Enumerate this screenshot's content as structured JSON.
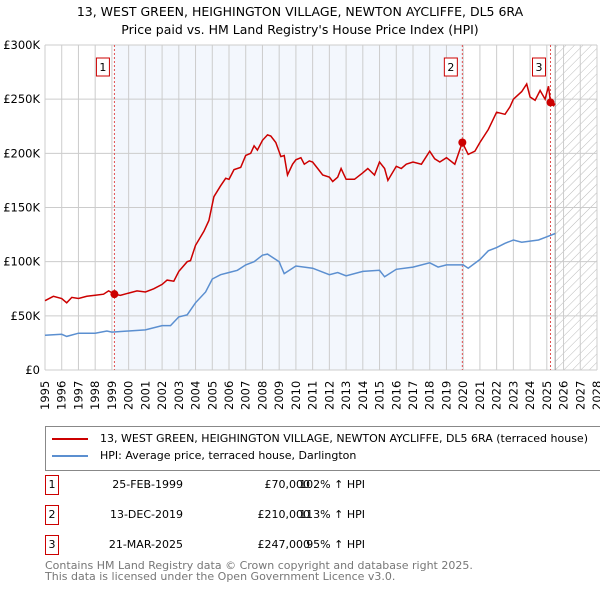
{
  "title": "13, WEST GREEN, HEIGHINGTON VILLAGE, NEWTON AYCLIFFE, DL5 6RA",
  "subtitle": "Price paid vs. HM Land Registry's House Price Index (HPI)",
  "chart_data": {
    "type": "line",
    "xlim": [
      1995,
      2028
    ],
    "ylim": [
      0,
      300000
    ],
    "yticks": [
      0,
      50000,
      100000,
      150000,
      200000,
      250000,
      300000
    ],
    "ytick_labels": [
      "£0",
      "£50K",
      "£100K",
      "£150K",
      "£200K",
      "£250K",
      "£300K"
    ],
    "xticks": [
      "1995",
      "1996",
      "1997",
      "1998",
      "1999",
      "2000",
      "2001",
      "2002",
      "2003",
      "2004",
      "2005",
      "2006",
      "2007",
      "2008",
      "2009",
      "2010",
      "2011",
      "2012",
      "2013",
      "2014",
      "2015",
      "2016",
      "2017",
      "2018",
      "2019",
      "2020",
      "2021",
      "2022",
      "2023",
      "2024",
      "2025",
      "2026",
      "2027",
      "2028"
    ],
    "grid": true,
    "shaded_period": [
      1999.15,
      2019.95
    ],
    "forecast_hatch_from": 2025.5,
    "series": [
      {
        "name": "13, WEST GREEN, HEIGHINGTON VILLAGE, NEWTON AYCLIFFE, DL5 6RA (terraced house)",
        "color": "#cc0000",
        "x": [
          1995,
          1995.5,
          1996,
          1996.3,
          1996.6,
          1997,
          1997.5,
          1998,
          1998.5,
          1998.8,
          1999.15,
          1999.5,
          2000,
          2000.5,
          2001,
          2001.5,
          2002,
          2002.3,
          2002.7,
          2003,
          2003.5,
          2003.7,
          2004,
          2004.5,
          2004.8,
          2005.1,
          2005.5,
          2005.8,
          2006,
          2006.3,
          2006.7,
          2007,
          2007.3,
          2007.5,
          2007.7,
          2008,
          2008.3,
          2008.5,
          2008.8,
          2009.1,
          2009.3,
          2009.5,
          2009.8,
          2010,
          2010.3,
          2010.5,
          2010.8,
          2011,
          2011.3,
          2011.6,
          2012,
          2012.2,
          2012.5,
          2012.7,
          2013,
          2013.5,
          2014,
          2014.3,
          2014.7,
          2015,
          2015.3,
          2015.5,
          2016,
          2016.3,
          2016.6,
          2017,
          2017.5,
          2018,
          2018.3,
          2018.6,
          2019,
          2019.5,
          2019.95,
          2020.3,
          2020.7,
          2021,
          2021.5,
          2022,
          2022.5,
          2022.8,
          2023,
          2023.5,
          2023.8,
          2024,
          2024.3,
          2024.6,
          2024.9,
          2025,
          2025.1,
          2025.22,
          2025.4,
          2025.5
        ],
        "y": [
          64000,
          68000,
          66000,
          62000,
          67000,
          66000,
          68000,
          69000,
          70000,
          73000,
          70000,
          69000,
          71000,
          73000,
          72000,
          75000,
          79000,
          83000,
          82000,
          91000,
          100000,
          101000,
          115000,
          128000,
          138000,
          160000,
          170000,
          177000,
          176000,
          185000,
          187000,
          198000,
          200000,
          207000,
          203000,
          212000,
          217000,
          216000,
          210000,
          197000,
          198000,
          180000,
          190000,
          194000,
          196000,
          190000,
          193000,
          192000,
          186000,
          180000,
          178000,
          174000,
          178000,
          186000,
          176000,
          176000,
          182000,
          186000,
          180000,
          192000,
          186000,
          175000,
          188000,
          186000,
          190000,
          192000,
          190000,
          202000,
          195000,
          192000,
          196000,
          190000,
          210000,
          199000,
          202000,
          210000,
          222000,
          238000,
          236000,
          243000,
          250000,
          257000,
          264000,
          252000,
          249000,
          258000,
          250000,
          256000,
          262000,
          247000,
          244000,
          246000
        ]
      },
      {
        "name": "HPI: Average price, terraced house, Darlington",
        "color": "#5b8fd0",
        "x": [
          1995,
          1996,
          1996.3,
          1997,
          1998,
          1998.7,
          1999,
          2000,
          2001,
          2002,
          2002.5,
          2003,
          2003.5,
          2004,
          2004.6,
          2005,
          2005.5,
          2006,
          2006.5,
          2007,
          2007.5,
          2008,
          2008.3,
          2009,
          2009.1,
          2009.3,
          2010,
          2011,
          2012,
          2012.5,
          2013,
          2014,
          2015,
          2015.3,
          2016,
          2017,
          2018,
          2018.5,
          2019,
          2020,
          2020.3,
          2021,
          2021.5,
          2022,
          2022.5,
          2023,
          2023.5,
          2024,
          2024.5,
          2025,
          2025.5
        ],
        "y": [
          32000,
          33000,
          31000,
          34000,
          34000,
          36000,
          35000,
          36000,
          37000,
          41000,
          41000,
          49000,
          51000,
          62000,
          72000,
          84000,
          88000,
          90000,
          92000,
          97000,
          100000,
          106000,
          107000,
          100000,
          96000,
          89000,
          96000,
          94000,
          88000,
          90000,
          87000,
          91000,
          92000,
          86000,
          93000,
          95000,
          99000,
          95000,
          97000,
          97000,
          94000,
          102000,
          110000,
          113000,
          117000,
          120000,
          118000,
          119000,
          120000,
          123000,
          126000
        ]
      }
    ],
    "sales": [
      {
        "label": "1",
        "x": 1999.15,
        "y": 70000
      },
      {
        "label": "2",
        "x": 2019.95,
        "y": 210000
      },
      {
        "label": "3",
        "x": 2025.22,
        "y": 247000
      }
    ]
  },
  "legend": {
    "property": "13, WEST GREEN, HEIGHINGTON VILLAGE, NEWTON AYCLIFFE, DL5 6RA (terraced house)",
    "hpi": "HPI: Average price, terraced house, Darlington"
  },
  "transactions": [
    {
      "num": "1",
      "date": "25-FEB-1999",
      "price": "£70,000",
      "hpi": "102% ↑ HPI"
    },
    {
      "num": "2",
      "date": "13-DEC-2019",
      "price": "£210,000",
      "hpi": "113% ↑ HPI"
    },
    {
      "num": "3",
      "date": "21-MAR-2025",
      "price": "£247,000",
      "hpi": "95% ↑ HPI"
    }
  ],
  "footer": {
    "line1": "Contains HM Land Registry data © Crown copyright and database right 2025.",
    "line2": "This data is licensed under the Open Government Licence v3.0."
  }
}
